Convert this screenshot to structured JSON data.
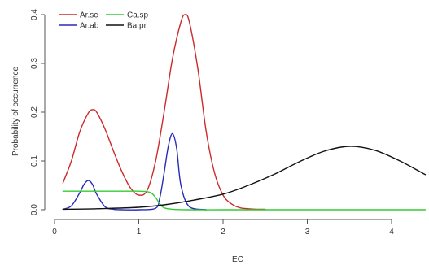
{
  "chart_data": {
    "type": "line",
    "title": "",
    "xlabel": "EC",
    "ylabel": "Probability of occurrence",
    "xlim": [
      0,
      4.4
    ],
    "ylim": [
      0,
      0.41
    ],
    "x_ticks": [
      0,
      1,
      2,
      3,
      4
    ],
    "y_ticks": [
      0.0,
      0.1,
      0.2,
      0.3,
      0.4
    ],
    "y_tick_labels": [
      "0.0",
      "0.1",
      "0.2",
      "0.3",
      "0.4"
    ],
    "grid": false,
    "legend_position": "top-left",
    "series": [
      {
        "name": "Ar.sc",
        "color": "#cc2a2a",
        "x": [
          0.1,
          0.2,
          0.3,
          0.4,
          0.45,
          0.5,
          0.6,
          0.7,
          0.8,
          0.9,
          1.0,
          1.1,
          1.2,
          1.3,
          1.4,
          1.5,
          1.55,
          1.6,
          1.7,
          1.8,
          1.9,
          2.0,
          2.1,
          2.2,
          2.3,
          2.4,
          2.5
        ],
        "y": [
          0.055,
          0.1,
          0.16,
          0.198,
          0.205,
          0.2,
          0.165,
          0.12,
          0.078,
          0.045,
          0.03,
          0.04,
          0.1,
          0.2,
          0.31,
          0.385,
          0.4,
          0.385,
          0.29,
          0.16,
          0.075,
          0.03,
          0.012,
          0.004,
          0.002,
          0.001,
          0.001
        ]
      },
      {
        "name": "Ar.ab",
        "color": "#2a2ab8",
        "x": [
          0.1,
          0.2,
          0.3,
          0.35,
          0.4,
          0.45,
          0.5,
          0.6,
          0.7,
          0.8,
          1.0,
          1.2,
          1.25,
          1.3,
          1.35,
          1.4,
          1.45,
          1.5,
          1.6,
          1.8
        ],
        "y": [
          0.001,
          0.008,
          0.035,
          0.052,
          0.06,
          0.052,
          0.032,
          0.006,
          0.001,
          0.0,
          0.0,
          0.003,
          0.025,
          0.075,
          0.13,
          0.156,
          0.125,
          0.05,
          0.006,
          0.0
        ]
      },
      {
        "name": "Ca.sp",
        "color": "#33cc33",
        "x": [
          0.1,
          0.4,
          0.7,
          1.0,
          1.1,
          1.15,
          1.2,
          1.25,
          1.3,
          1.4,
          1.6,
          2.0,
          3.0,
          4.4
        ],
        "y": [
          0.038,
          0.038,
          0.038,
          0.038,
          0.037,
          0.034,
          0.025,
          0.012,
          0.004,
          0.001,
          0.0,
          0.0,
          0.0,
          0.0
        ]
      },
      {
        "name": "Ba.pr",
        "color": "#111111",
        "x": [
          0.1,
          0.5,
          1.0,
          1.3,
          1.6,
          2.0,
          2.3,
          2.6,
          2.9,
          3.2,
          3.5,
          3.8,
          4.1,
          4.4
        ],
        "y": [
          0.001,
          0.002,
          0.005,
          0.01,
          0.018,
          0.032,
          0.05,
          0.072,
          0.098,
          0.12,
          0.13,
          0.122,
          0.1,
          0.072
        ]
      }
    ]
  }
}
